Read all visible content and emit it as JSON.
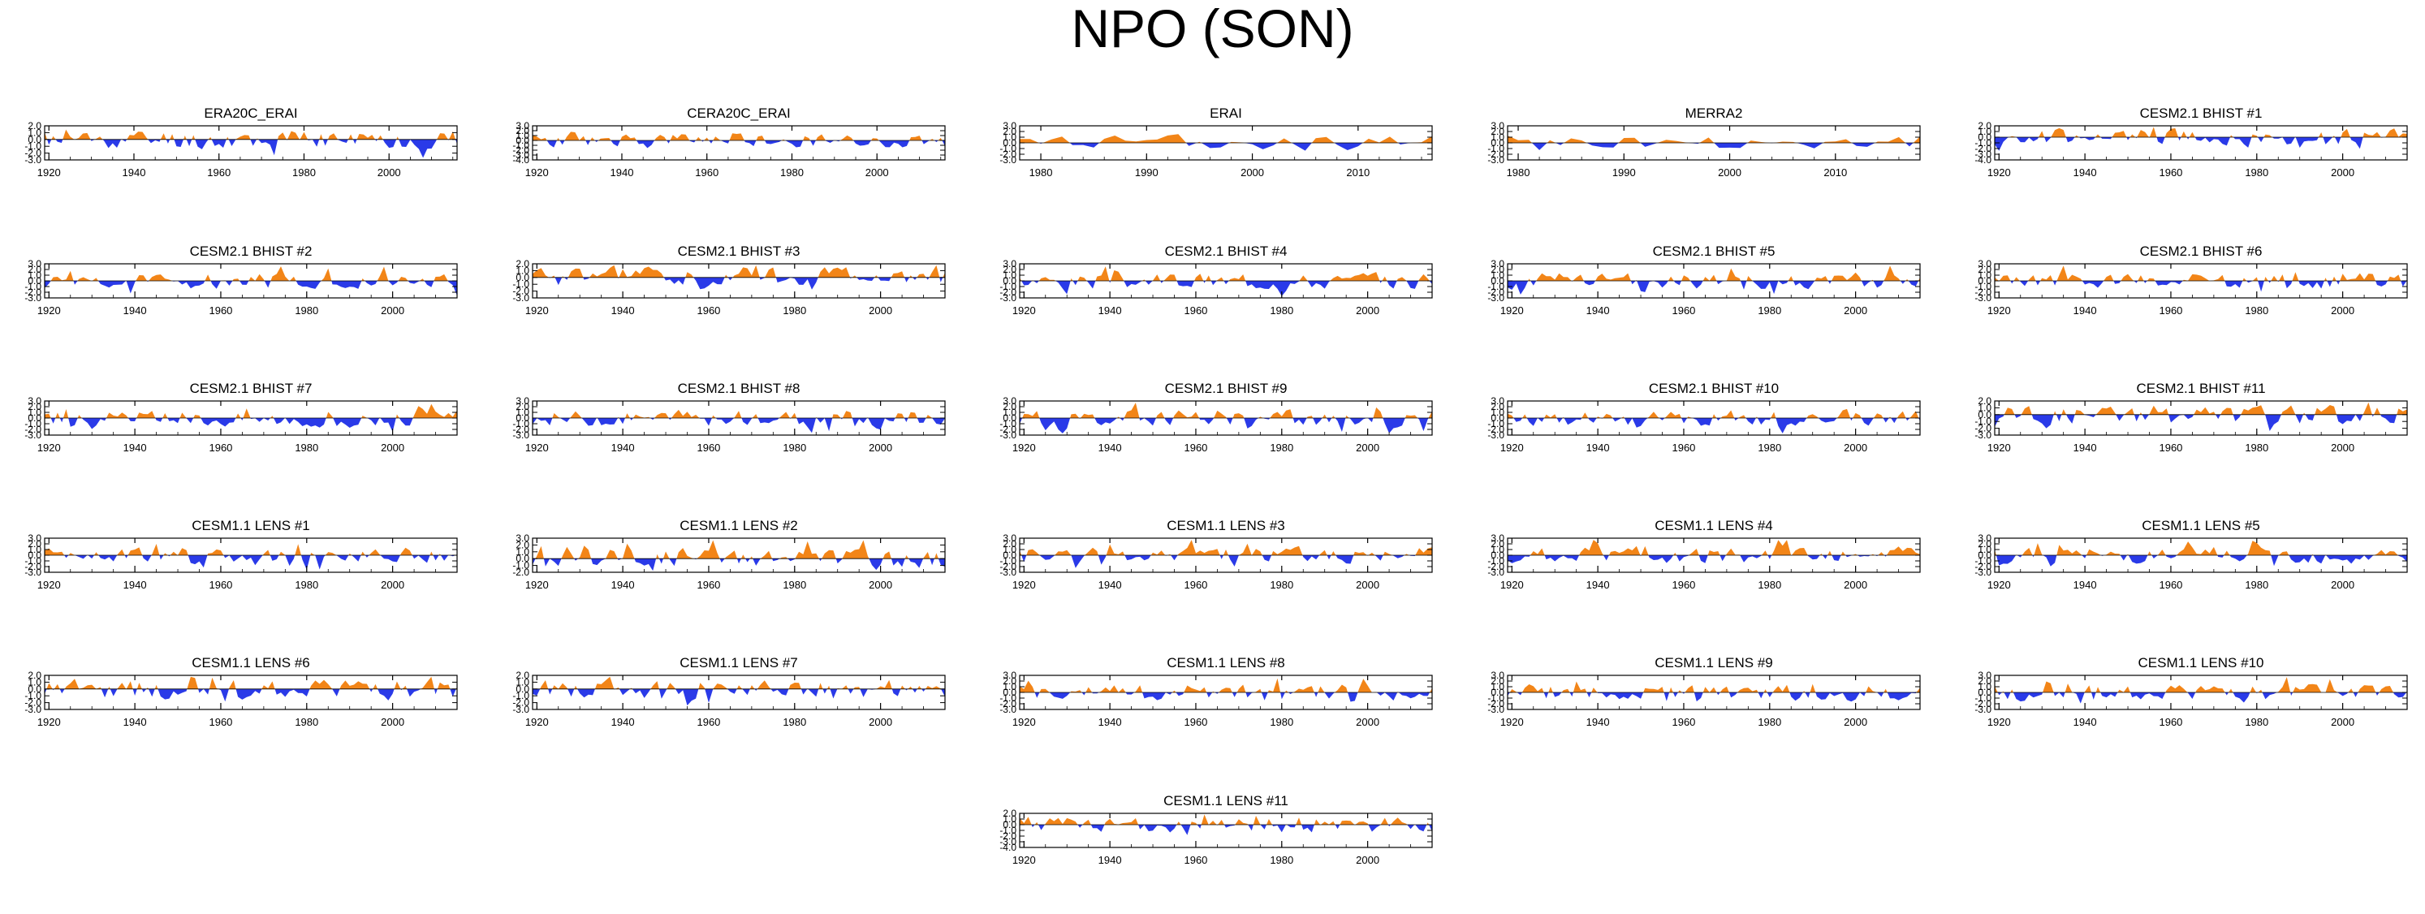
{
  "figure_title": "NPO (SON)",
  "colors": {
    "positive": "#f28518",
    "negative": "#2a3ae8",
    "axis": "#000000"
  },
  "chart_data": [
    {
      "title": "ERA20C_ERAI",
      "type": "area",
      "x_range": [
        1919,
        2016
      ],
      "xticks": [
        1920,
        1940,
        1960,
        1980,
        2000
      ],
      "ylim": [
        -3.0,
        2.0
      ],
      "yticks": [
        "2.0",
        "1.0",
        "0.0",
        "-1.0",
        "-2.0",
        "-3.0"
      ],
      "seed": 11
    },
    {
      "title": "CERA20C_ERAI",
      "type": "area",
      "x_range": [
        1919,
        2016
      ],
      "xticks": [
        1920,
        1940,
        1960,
        1980,
        2000
      ],
      "ylim": [
        -4.0,
        3.0
      ],
      "yticks": [
        "3.0",
        "2.0",
        "1.0",
        "0.0",
        "-1.0",
        "-2.0",
        "-3.0",
        "-4.0"
      ],
      "seed": 23
    },
    {
      "title": "ERAI",
      "type": "area",
      "x_range": [
        1978,
        2017
      ],
      "xticks": [
        1980,
        1990,
        2000,
        2010
      ],
      "ylim": [
        -3.0,
        3.0
      ],
      "yticks": [
        "3.0",
        "2.0",
        "1.0",
        "0.0",
        "-1.0",
        "-2.0",
        "-3.0"
      ],
      "seed": 37
    },
    {
      "title": "MERRA2",
      "type": "area",
      "x_range": [
        1979,
        2018
      ],
      "xticks": [
        1980,
        1990,
        2000,
        2010
      ],
      "ylim": [
        -3.0,
        3.0
      ],
      "yticks": [
        "3.0",
        "2.0",
        "1.0",
        "0.0",
        "-1.0",
        "-2.0",
        "-3.0"
      ],
      "seed": 41
    },
    {
      "title": "CESM2.1 BHIST #1",
      "type": "area",
      "x_range": [
        1919,
        2015
      ],
      "xticks": [
        1920,
        1940,
        1960,
        1980,
        2000
      ],
      "ylim": [
        -4.0,
        2.0
      ],
      "yticks": [
        "2.0",
        "1.0",
        "0.0",
        "-1.0",
        "-2.0",
        "-3.0",
        "-4.0"
      ],
      "seed": 53
    },
    {
      "title": "CESM2.1 BHIST #2",
      "type": "area",
      "x_range": [
        1919,
        2015
      ],
      "xticks": [
        1920,
        1940,
        1960,
        1980,
        2000
      ],
      "ylim": [
        -3.0,
        3.0
      ],
      "yticks": [
        "3.0",
        "2.0",
        "1.0",
        "0.0",
        "-1.0",
        "-2.0",
        "-3.0"
      ],
      "seed": 59
    },
    {
      "title": "CESM2.1 BHIST #3",
      "type": "area",
      "x_range": [
        1919,
        2015
      ],
      "xticks": [
        1920,
        1940,
        1960,
        1980,
        2000
      ],
      "ylim": [
        -3.0,
        2.0
      ],
      "yticks": [
        "2.0",
        "1.0",
        "0.0",
        "-1.0",
        "-2.0",
        "-3.0"
      ],
      "seed": 61
    },
    {
      "title": "CESM2.1 BHIST #4",
      "type": "area",
      "x_range": [
        1919,
        2015
      ],
      "xticks": [
        1920,
        1940,
        1960,
        1980,
        2000
      ],
      "ylim": [
        -3.0,
        3.0
      ],
      "yticks": [
        "3.0",
        "2.0",
        "1.0",
        "0.0",
        "-1.0",
        "-2.0",
        "-3.0"
      ],
      "seed": 67
    },
    {
      "title": "CESM2.1 BHIST #5",
      "type": "area",
      "x_range": [
        1919,
        2015
      ],
      "xticks": [
        1920,
        1940,
        1960,
        1980,
        2000
      ],
      "ylim": [
        -3.0,
        3.0
      ],
      "yticks": [
        "3.0",
        "2.0",
        "1.0",
        "0.0",
        "-1.0",
        "-2.0",
        "-3.0"
      ],
      "seed": 71
    },
    {
      "title": "CESM2.1 BHIST #6",
      "type": "area",
      "x_range": [
        1919,
        2015
      ],
      "xticks": [
        1920,
        1940,
        1960,
        1980,
        2000
      ],
      "ylim": [
        -3.0,
        3.0
      ],
      "yticks": [
        "3.0",
        "2.0",
        "1.0",
        "0.0",
        "-1.0",
        "-2.0",
        "-3.0"
      ],
      "seed": 73
    },
    {
      "title": "CESM2.1 BHIST #7",
      "type": "area",
      "x_range": [
        1919,
        2015
      ],
      "xticks": [
        1920,
        1940,
        1960,
        1980,
        2000
      ],
      "ylim": [
        -3.0,
        3.0
      ],
      "yticks": [
        "3.0",
        "2.0",
        "1.0",
        "0.0",
        "-1.0",
        "-2.0",
        "-3.0"
      ],
      "seed": 79
    },
    {
      "title": "CESM2.1 BHIST #8",
      "type": "area",
      "x_range": [
        1919,
        2015
      ],
      "xticks": [
        1920,
        1940,
        1960,
        1980,
        2000
      ],
      "ylim": [
        -3.0,
        3.0
      ],
      "yticks": [
        "3.0",
        "2.0",
        "1.0",
        "0.0",
        "-1.0",
        "-2.0",
        "-3.0"
      ],
      "seed": 83
    },
    {
      "title": "CESM2.1 BHIST #9",
      "type": "area",
      "x_range": [
        1919,
        2015
      ],
      "xticks": [
        1920,
        1940,
        1960,
        1980,
        2000
      ],
      "ylim": [
        -3.0,
        3.0
      ],
      "yticks": [
        "3.0",
        "2.0",
        "1.0",
        "0.0",
        "-1.0",
        "-2.0",
        "-3.0"
      ],
      "seed": 89
    },
    {
      "title": "CESM2.1 BHIST #10",
      "type": "area",
      "x_range": [
        1919,
        2015
      ],
      "xticks": [
        1920,
        1940,
        1960,
        1980,
        2000
      ],
      "ylim": [
        -3.0,
        3.0
      ],
      "yticks": [
        "3.0",
        "2.0",
        "1.0",
        "0.0",
        "-1.0",
        "-2.0",
        "-3.0"
      ],
      "seed": 97
    },
    {
      "title": "CESM2.1 BHIST #11",
      "type": "area",
      "x_range": [
        1919,
        2015
      ],
      "xticks": [
        1920,
        1940,
        1960,
        1980,
        2000
      ],
      "ylim": [
        -3.0,
        2.0
      ],
      "yticks": [
        "2.0",
        "1.0",
        "0.0",
        "-1.0",
        "-2.0",
        "-3.0"
      ],
      "seed": 101
    },
    {
      "title": "CESM1.1 LENS #1",
      "type": "area",
      "x_range": [
        1919,
        2015
      ],
      "xticks": [
        1920,
        1940,
        1960,
        1980,
        2000
      ],
      "ylim": [
        -3.0,
        3.0
      ],
      "yticks": [
        "3.0",
        "2.0",
        "1.0",
        "0.0",
        "-1.0",
        "-2.0",
        "-3.0"
      ],
      "seed": 103
    },
    {
      "title": "CESM1.1 LENS #2",
      "type": "area",
      "x_range": [
        1919,
        2015
      ],
      "xticks": [
        1920,
        1940,
        1960,
        1980,
        2000
      ],
      "ylim": [
        -2.0,
        3.0
      ],
      "yticks": [
        "3.0",
        "2.0",
        "1.0",
        "0.0",
        "-1.0",
        "-2.0"
      ],
      "seed": 107
    },
    {
      "title": "CESM1.1 LENS #3",
      "type": "area",
      "x_range": [
        1919,
        2015
      ],
      "xticks": [
        1920,
        1940,
        1960,
        1980,
        2000
      ],
      "ylim": [
        -3.0,
        3.0
      ],
      "yticks": [
        "3.0",
        "2.0",
        "1.0",
        "0.0",
        "-1.0",
        "-2.0",
        "-3.0"
      ],
      "seed": 109
    },
    {
      "title": "CESM1.1 LENS #4",
      "type": "area",
      "x_range": [
        1919,
        2015
      ],
      "xticks": [
        1920,
        1940,
        1960,
        1980,
        2000
      ],
      "ylim": [
        -3.0,
        3.0
      ],
      "yticks": [
        "3.0",
        "2.0",
        "1.0",
        "0.0",
        "-1.0",
        "-2.0",
        "-3.0"
      ],
      "seed": 113
    },
    {
      "title": "CESM1.1 LENS #5",
      "type": "area",
      "x_range": [
        1919,
        2015
      ],
      "xticks": [
        1920,
        1940,
        1960,
        1980,
        2000
      ],
      "ylim": [
        -3.0,
        3.0
      ],
      "yticks": [
        "3.0",
        "2.0",
        "1.0",
        "0.0",
        "-1.0",
        "-2.0",
        "-3.0"
      ],
      "seed": 127
    },
    {
      "title": "CESM1.1 LENS #6",
      "type": "area",
      "x_range": [
        1919,
        2015
      ],
      "xticks": [
        1920,
        1940,
        1960,
        1980,
        2000
      ],
      "ylim": [
        -3.0,
        2.0
      ],
      "yticks": [
        "2.0",
        "1.0",
        "0.0",
        "-1.0",
        "-2.0",
        "-3.0"
      ],
      "seed": 131
    },
    {
      "title": "CESM1.1 LENS #7",
      "type": "area",
      "x_range": [
        1919,
        2015
      ],
      "xticks": [
        1920,
        1940,
        1960,
        1980,
        2000
      ],
      "ylim": [
        -3.0,
        2.0
      ],
      "yticks": [
        "2.0",
        "1.0",
        "0.0",
        "-1.0",
        "-2.0",
        "-3.0"
      ],
      "seed": 137
    },
    {
      "title": "CESM1.1 LENS #8",
      "type": "area",
      "x_range": [
        1919,
        2015
      ],
      "xticks": [
        1920,
        1940,
        1960,
        1980,
        2000
      ],
      "ylim": [
        -3.0,
        3.0
      ],
      "yticks": [
        "3.0",
        "2.0",
        "1.0",
        "0.0",
        "-1.0",
        "-2.0",
        "-3.0"
      ],
      "seed": 139
    },
    {
      "title": "CESM1.1 LENS #9",
      "type": "area",
      "x_range": [
        1919,
        2015
      ],
      "xticks": [
        1920,
        1940,
        1960,
        1980,
        2000
      ],
      "ylim": [
        -3.0,
        3.0
      ],
      "yticks": [
        "3.0",
        "2.0",
        "1.0",
        "0.0",
        "-1.0",
        "-2.0",
        "-3.0"
      ],
      "seed": 149
    },
    {
      "title": "CESM1.1 LENS #10",
      "type": "area",
      "x_range": [
        1919,
        2015
      ],
      "xticks": [
        1920,
        1940,
        1960,
        1980,
        2000
      ],
      "ylim": [
        -3.0,
        3.0
      ],
      "yticks": [
        "3.0",
        "2.0",
        "1.0",
        "0.0",
        "-1.0",
        "-2.0",
        "-3.0"
      ],
      "seed": 151
    },
    {
      "title": "CESM1.1 LENS #11",
      "type": "area",
      "x_range": [
        1919,
        2015
      ],
      "xticks": [
        1920,
        1940,
        1960,
        1980,
        2000
      ],
      "ylim": [
        -4.0,
        2.0
      ],
      "yticks": [
        "2.0",
        "1.0",
        "0.0",
        "-1.0",
        "-2.0",
        "-3.0",
        "-4.0"
      ],
      "seed": 157
    }
  ]
}
